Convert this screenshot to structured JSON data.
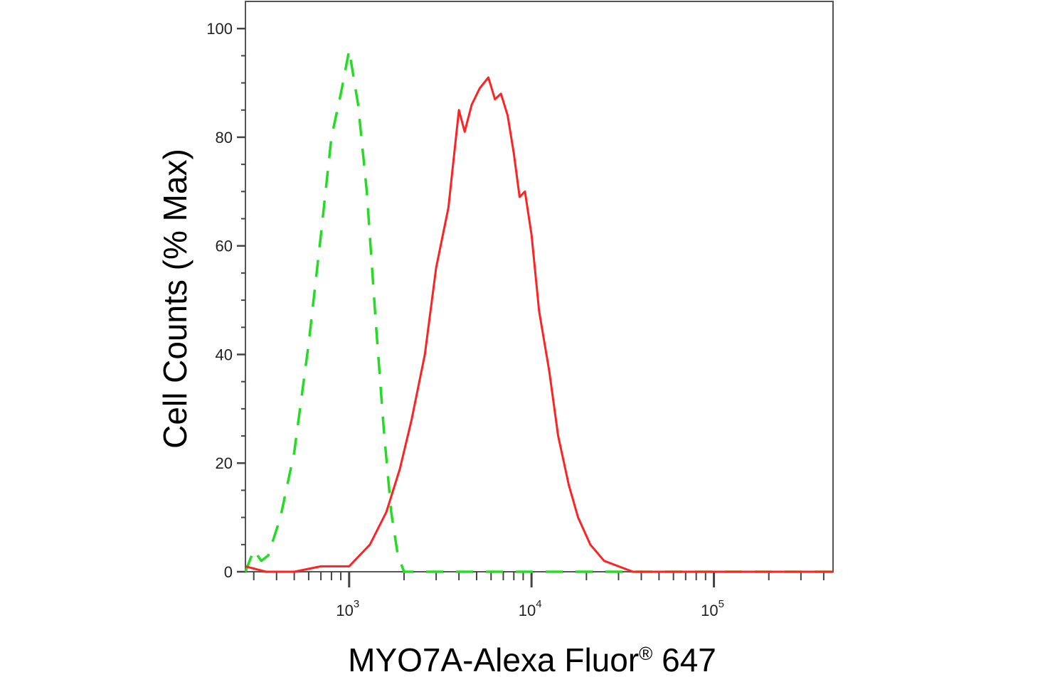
{
  "chart_data": {
    "type": "line",
    "title": "",
    "xlabel": "MYO7A-Alexa Fluor",
    "xlabel_sup": "®",
    "xlabel_suffix": " 647",
    "ylabel": "Cell Counts (% Max)",
    "x_scale": "log",
    "xlim": [
      270,
      450000
    ],
    "ylim": [
      0,
      105
    ],
    "y_ticks": [
      0,
      20,
      40,
      60,
      80,
      100
    ],
    "x_major_ticks": [
      {
        "value": 1000,
        "base": "10",
        "exp": "3"
      },
      {
        "value": 10000,
        "base": "10",
        "exp": "4"
      },
      {
        "value": 100000,
        "base": "10",
        "exp": "5"
      }
    ],
    "grid": false,
    "legend": "none",
    "series": [
      {
        "color": "#22dd22",
        "dash": "dashed",
        "x": [
          270,
          300,
          330,
          360,
          420,
          500,
          600,
          700,
          800,
          900,
          1000,
          1120,
          1250,
          1400,
          1550,
          1700,
          1850,
          2000,
          2200,
          2500,
          3000,
          5000,
          10000,
          30000,
          450000
        ],
        "y": [
          0,
          4,
          2,
          3,
          10,
          22,
          42,
          62,
          80,
          88,
          96,
          86,
          70,
          46,
          26,
          11,
          3,
          0,
          0,
          0,
          0,
          0,
          0,
          0,
          0
        ]
      },
      {
        "color": "#ff2222",
        "dash": "solid",
        "x": [
          270,
          350,
          500,
          700,
          1000,
          1300,
          1600,
          1900,
          2200,
          2600,
          3000,
          3500,
          4000,
          4300,
          4700,
          5200,
          5800,
          6300,
          6800,
          7400,
          8000,
          8600,
          9200,
          10000,
          11000,
          12500,
          14000,
          16000,
          18000,
          21000,
          25000,
          30000,
          36000,
          45000,
          60000,
          100000,
          200000,
          450000
        ],
        "y": [
          1,
          0,
          0,
          1,
          1,
          5,
          11,
          19,
          28,
          40,
          56,
          67,
          85,
          81,
          86,
          89,
          91,
          87,
          88,
          84,
          77,
          69,
          70,
          62,
          48,
          37,
          25,
          16,
          10,
          5,
          2,
          1,
          0,
          0,
          0,
          0,
          0,
          0
        ]
      }
    ]
  }
}
